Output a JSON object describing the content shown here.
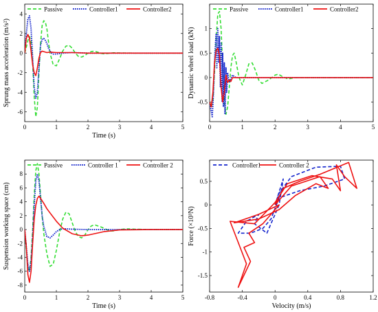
{
  "chart_data": [
    {
      "type": "line",
      "xlabel": "Time (s)",
      "ylabel": "Sprung mass acceleration (m/s²)",
      "xlim": [
        0,
        5
      ],
      "ylim": [
        -7,
        5
      ],
      "xticks": [
        0,
        1,
        2,
        3,
        4,
        5
      ],
      "yticks": [
        -6,
        -4,
        -2,
        0,
        2,
        4
      ],
      "legend": "top",
      "series": [
        {
          "name": "Passive",
          "color": "#33dd33",
          "style": "dashed",
          "x": [
            0,
            0.05,
            0.1,
            0.15,
            0.2,
            0.25,
            0.3,
            0.35,
            0.4,
            0.45,
            0.5,
            0.55,
            0.6,
            0.65,
            0.7,
            0.75,
            0.8,
            0.9,
            1.0,
            1.1,
            1.2,
            1.3,
            1.4,
            1.5,
            1.6,
            1.7,
            1.8,
            1.9,
            2.0,
            2.1,
            2.2,
            2.3,
            2.4,
            2.5,
            2.6,
            2.8,
            3.0,
            3.5,
            4.0,
            5.0
          ],
          "y": [
            0,
            0.6,
            1.3,
            1.7,
            1.2,
            -1.0,
            -4.5,
            -6.5,
            -5.5,
            -2.0,
            1.0,
            2.8,
            3.3,
            3.2,
            2.5,
            1.2,
            0,
            -1.2,
            -1.3,
            -0.6,
            0.2,
            0.7,
            0.8,
            0.5,
            0,
            -0.35,
            -0.4,
            -0.25,
            0,
            0.15,
            0.2,
            0.1,
            -0.02,
            -0.08,
            -0.05,
            0.03,
            0.02,
            0,
            0,
            0
          ]
        },
        {
          "name": "Controller1",
          "color": "#1122cc",
          "style": "dotted",
          "x": [
            0,
            0.05,
            0.1,
            0.15,
            0.2,
            0.25,
            0.3,
            0.35,
            0.4,
            0.45,
            0.5,
            0.55,
            0.6,
            0.65,
            0.7,
            0.75,
            0.8,
            0.85,
            0.9,
            1.0,
            1.2,
            1.5,
            2.0,
            3.0,
            5.0
          ],
          "y": [
            0,
            2.0,
            3.5,
            3.8,
            2.5,
            -0.5,
            -3.5,
            -4.6,
            -4.0,
            -1.5,
            0.8,
            1.4,
            1.5,
            1.3,
            1.0,
            0.5,
            0.2,
            0,
            -0.1,
            -0.1,
            0,
            0.05,
            0,
            0,
            0
          ]
        },
        {
          "name": "Controller2",
          "color": "#ee1111",
          "style": "solid",
          "x": [
            0,
            0.05,
            0.1,
            0.15,
            0.2,
            0.25,
            0.3,
            0.35,
            0.4,
            0.45,
            0.5,
            0.55,
            0.6,
            0.7,
            0.8,
            1.0,
            1.5,
            2.0,
            5.0
          ],
          "y": [
            0,
            1.5,
            1.9,
            1.5,
            0.2,
            -1.2,
            -2.0,
            -2.3,
            -1.5,
            -0.5,
            0.05,
            0.2,
            0.15,
            0.05,
            0.1,
            0.05,
            0.05,
            0,
            0
          ]
        }
      ]
    },
    {
      "type": "line",
      "xlabel": "",
      "ylabel": "Dynamic wheel load (kN)",
      "xlim": [
        0,
        5
      ],
      "ylim": [
        -0.9,
        1.5
      ],
      "xticks": [
        0,
        1,
        2,
        3,
        4,
        5
      ],
      "yticks": [
        -0.5,
        0,
        0.5,
        1
      ],
      "legend": "top",
      "series": [
        {
          "name": "Passive",
          "color": "#33dd33",
          "style": "dashed",
          "x": [
            0,
            0.05,
            0.1,
            0.15,
            0.2,
            0.25,
            0.3,
            0.35,
            0.4,
            0.45,
            0.5,
            0.55,
            0.6,
            0.65,
            0.7,
            0.75,
            0.8,
            0.9,
            1.0,
            1.1,
            1.2,
            1.3,
            1.4,
            1.5,
            1.6,
            1.8,
            2.0,
            2.1,
            2.2,
            2.4,
            2.6,
            3.0,
            4.0,
            5.0
          ],
          "y": [
            -0.5,
            -0.6,
            -0.45,
            0.1,
            0.8,
            1.3,
            1.35,
            1.0,
            0.2,
            -0.5,
            -0.75,
            -0.6,
            -0.2,
            0.2,
            0.45,
            0.5,
            0.35,
            0,
            -0.15,
            0.05,
            0.28,
            0.3,
            0.15,
            -0.05,
            -0.12,
            -0.05,
            0.05,
            0.07,
            0.03,
            -0.03,
            0,
            0,
            0,
            0
          ]
        },
        {
          "name": "Controller1",
          "color": "#1122cc",
          "style": "dotted",
          "x": [
            0,
            0.05,
            0.08,
            0.12,
            0.16,
            0.2,
            0.22,
            0.25,
            0.28,
            0.3,
            0.33,
            0.35,
            0.38,
            0.4,
            0.42,
            0.45,
            0.47,
            0.5,
            0.52,
            0.55,
            0.6,
            0.7,
            0.8,
            1.0,
            1.5,
            5.0
          ],
          "y": [
            -0.5,
            -0.7,
            -0.8,
            -0.3,
            0.5,
            0.9,
            0.2,
            1.0,
            0.3,
            0.85,
            -0.2,
            0.7,
            -0.5,
            0.5,
            -0.6,
            0.3,
            -0.75,
            0.2,
            -0.3,
            0.1,
            -0.1,
            0.05,
            0,
            0,
            0,
            0
          ]
        },
        {
          "name": "Controller2",
          "color": "#ee1111",
          "style": "solid",
          "x": [
            0,
            0.05,
            0.1,
            0.15,
            0.2,
            0.25,
            0.3,
            0.35,
            0.4,
            0.45,
            0.5,
            0.55,
            0.6,
            0.65,
            0.7,
            0.8,
            1.0,
            2.0,
            5.0
          ],
          "y": [
            -0.5,
            -0.6,
            -0.3,
            0.3,
            0.55,
            0.6,
            0.45,
            -0.2,
            -0.5,
            -0.3,
            0.05,
            -0.1,
            -0.05,
            -0.08,
            0,
            0,
            0,
            0,
            0
          ]
        }
      ]
    },
    {
      "type": "line",
      "xlabel": "Time (s)",
      "ylabel": "Suspension working space (cm)",
      "xlim": [
        0,
        5
      ],
      "ylim": [
        -9,
        10
      ],
      "xticks": [
        0,
        1,
        2,
        3,
        4,
        5
      ],
      "yticks": [
        -8,
        -6,
        -4,
        -2,
        0,
        2,
        4,
        6,
        8
      ],
      "legend": "top",
      "series": [
        {
          "name": "Passive",
          "color": "#33dd33",
          "style": "dashed",
          "x": [
            0,
            0.05,
            0.1,
            0.15,
            0.2,
            0.25,
            0.3,
            0.35,
            0.4,
            0.45,
            0.5,
            0.55,
            0.6,
            0.7,
            0.8,
            0.9,
            1.0,
            1.1,
            1.2,
            1.3,
            1.4,
            1.5,
            1.6,
            1.7,
            1.8,
            1.9,
            2.0,
            2.1,
            2.2,
            2.4,
            2.6,
            2.7,
            2.8,
            3.0,
            3.2,
            3.5,
            4.0,
            5.0
          ],
          "y": [
            0,
            -3.0,
            -5.5,
            -6.0,
            -4.0,
            0,
            5.0,
            8.5,
            9.5,
            8.0,
            5.0,
            2.0,
            -0.5,
            -3.5,
            -5.3,
            -5.0,
            -3.0,
            -0.5,
            1.5,
            2.5,
            2.3,
            1.0,
            -0.3,
            -1.0,
            -1.2,
            -0.8,
            0,
            0.5,
            0.7,
            0.4,
            0,
            -0.2,
            -0.2,
            0,
            0.1,
            0.05,
            0,
            0
          ]
        },
        {
          "name": "Controller 1",
          "color": "#1122cc",
          "style": "dotted",
          "x": [
            0,
            0.05,
            0.1,
            0.15,
            0.2,
            0.25,
            0.3,
            0.35,
            0.4,
            0.45,
            0.5,
            0.55,
            0.6,
            0.7,
            0.8,
            0.9,
            1.0,
            1.1,
            1.2,
            1.3,
            1.5,
            2.0,
            2.5,
            5.0
          ],
          "y": [
            0,
            -2.5,
            -5.0,
            -6.0,
            -4.5,
            -1.0,
            3.5,
            7.0,
            8.0,
            7.0,
            4.5,
            2.0,
            0.5,
            -1.0,
            -1.2,
            -0.8,
            -0.3,
            0,
            0.1,
            0.1,
            0.05,
            0,
            0,
            0
          ]
        },
        {
          "name": "Controller 2",
          "color": "#ee1111",
          "style": "solid",
          "x": [
            0,
            0.05,
            0.1,
            0.15,
            0.2,
            0.25,
            0.3,
            0.35,
            0.4,
            0.45,
            0.5,
            0.6,
            0.7,
            0.8,
            1.0,
            1.2,
            1.5,
            1.8,
            2.0,
            2.5,
            3.0,
            4.0,
            5.0
          ],
          "y": [
            0,
            -2.5,
            -6.5,
            -7.6,
            -6.0,
            -2.0,
            1.5,
            3.5,
            4.5,
            4.8,
            4.5,
            3.8,
            3.0,
            2.4,
            1.2,
            0.2,
            -0.6,
            -0.9,
            -0.8,
            -0.3,
            -0.05,
            0,
            0
          ]
        }
      ]
    },
    {
      "type": "line",
      "xlabel": "Velocity (m/s)",
      "ylabel": "Force (×10³N)",
      "xlim": [
        -0.8,
        1.2
      ],
      "ylim": [
        -1.85,
        0.95
      ],
      "xticks": [
        -0.8,
        -0.4,
        0,
        0.4,
        0.8,
        1.2
      ],
      "yticks": [
        -1.5,
        -1,
        -0.5,
        0,
        0.5
      ],
      "legend": "top-left",
      "series": [
        {
          "name": "Controller1",
          "color": "#1122cc",
          "style": "dashed",
          "x": [
            0,
            0.05,
            0.2,
            0.5,
            0.8,
            0.85,
            0.6,
            0.3,
            0.05,
            -0.05,
            -0.15,
            -0.3,
            -0.45,
            -0.35,
            -0.2,
            -0.25,
            -0.1,
            0,
            0.05,
            0.1,
            0
          ],
          "y": [
            0,
            0.25,
            0.6,
            0.8,
            0.82,
            0.55,
            0.4,
            0.3,
            0.15,
            -0.3,
            -0.5,
            -0.6,
            -0.6,
            -0.35,
            -0.2,
            -0.4,
            -0.6,
            -0.2,
            0,
            0.55,
            0
          ]
        },
        {
          "name": "Controller 2",
          "color": "#ee1111",
          "style": "solid",
          "x": [
            0,
            0.1,
            0.3,
            0.55,
            0.9,
            1.0,
            0.85,
            0.75,
            0.8,
            0.7,
            0.45,
            0.15,
            0,
            -0.25,
            -0.55,
            -0.35,
            -0.45,
            -0.3,
            -0.38,
            -0.25,
            -0.32,
            -0.15,
            0,
            0.05,
            -0.2,
            -0.5,
            -0.2,
            0.05,
            0.25,
            0.5,
            0.65,
            0.55,
            0.2,
            0
          ],
          "y": [
            0,
            0.35,
            0.5,
            0.65,
            0.9,
            0.35,
            0.6,
            0.85,
            0.3,
            0.55,
            0.62,
            0.45,
            0.05,
            -0.4,
            -0.35,
            -1.25,
            -1.75,
            -1.2,
            -0.9,
            -0.8,
            -0.6,
            -0.4,
            -0.1,
            0,
            -0.2,
            -0.38,
            -0.3,
            -0.1,
            0.2,
            0.45,
            0.35,
            0.6,
            0.4,
            0
          ]
        }
      ]
    }
  ]
}
